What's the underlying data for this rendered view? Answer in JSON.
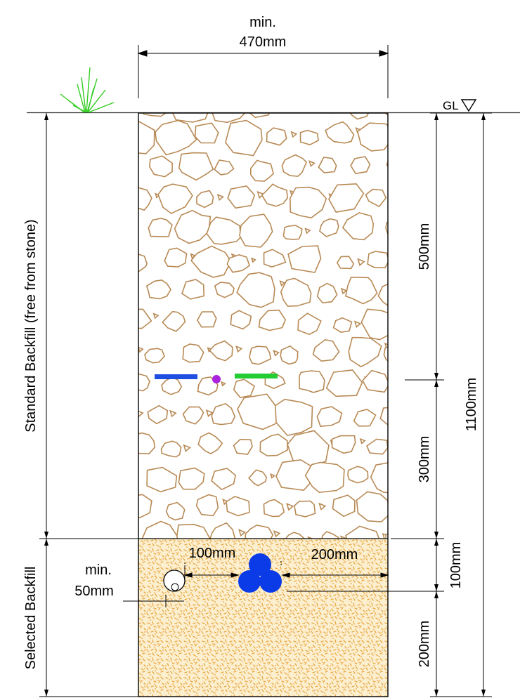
{
  "top_width": {
    "line1": "min.",
    "line2": "470mm"
  },
  "ground_level_label": "GL",
  "right_dims": {
    "upper_layer": "500mm",
    "lower_standard_layer": "300mm",
    "selected_upper": "100mm",
    "selected_lower": "200mm",
    "total_depth": "1100mm"
  },
  "left_labels": {
    "standard_backfill": "Standard Backfill (free from stone)",
    "selected_backfill": "Selected Backfill"
  },
  "cable_dims": {
    "left_spacing": "100mm",
    "right_spacing": "200mm",
    "min_line1": "min.",
    "min_line2": "50mm"
  },
  "colors": {
    "stone_outline": "#b88a55",
    "sand_fill": "#fcefcf",
    "sand_speckle": "#e8a640",
    "grass": "#33cc22",
    "ground_line": "#333333",
    "marker_blue": "#1f4fe0",
    "marker_green": "#22cc33",
    "marker_purple": "#aa22dd",
    "cable_blue": "#0a3be6"
  },
  "icons": {
    "ground_level": "down-triangle-icon",
    "grass": "grass-tuft-icon"
  }
}
